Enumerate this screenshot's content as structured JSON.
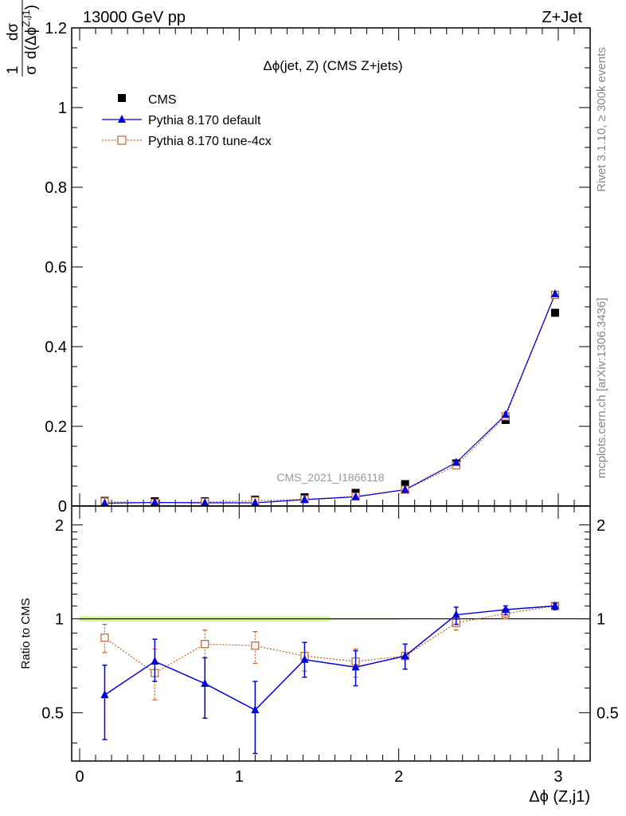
{
  "header": {
    "left": "13000 GeV pp",
    "right": "Z+Jet"
  },
  "side_labels": {
    "rivet": "Rivet 3.1.10, ≥ 300k events",
    "mcplots": "mcplots.cern.ch [arXiv:1306.3436]"
  },
  "colors": {
    "cms": "#000000",
    "default": "#0000dd",
    "tune4cx": "#c0602a",
    "band": "#ccff66"
  },
  "chart_data": [
    {
      "type": "scatter",
      "title": "Δϕ(jet, Z) (CMS Z+jets)",
      "ylabel": "1/σ dσ/d(Δϕ^{Z,j1})",
      "ylim": [
        0,
        1.2
      ],
      "xlim": [
        -0.05,
        3.2
      ],
      "y_ticks": [
        "0",
        "0.2",
        "0.4",
        "0.6",
        "0.8",
        "1",
        "1.2"
      ],
      "watermark": "CMS_2021_I1866118",
      "legend_position": "top-left",
      "x": [
        0.157,
        0.471,
        0.785,
        1.1,
        1.41,
        1.73,
        2.04,
        2.36,
        2.67,
        2.98
      ],
      "series": [
        {
          "name": "CMS",
          "marker": "filled-square",
          "values": [
            0.013,
            0.012,
            0.012,
            0.016,
            0.022,
            0.033,
            0.055,
            0.107,
            0.216,
            0.485
          ]
        },
        {
          "name": "Pythia 8.170 default",
          "marker": "triangle",
          "values": [
            0.007,
            0.009,
            0.008,
            0.008,
            0.016,
            0.023,
            0.041,
            0.109,
            0.229,
            0.532
          ]
        },
        {
          "name": "Pythia 8.170 tune-4cx",
          "marker": "open-square",
          "values": [
            0.011,
            0.008,
            0.01,
            0.013,
            0.017,
            0.024,
            0.041,
            0.102,
            0.225,
            0.53
          ]
        }
      ]
    },
    {
      "type": "line",
      "ylabel": "Ratio to CMS",
      "xlabel": "Δϕ (Z,j1)",
      "ylim": [
        0.35,
        2.3
      ],
      "xlim": [
        -0.05,
        3.2
      ],
      "y_ticks": [
        "0.5",
        "1",
        "2"
      ],
      "x_ticks": [
        "0",
        "1",
        "2",
        "3"
      ],
      "x": [
        0.157,
        0.471,
        0.785,
        1.1,
        1.41,
        1.73,
        2.04,
        2.36,
        2.67,
        2.98
      ],
      "series": [
        {
          "name": "Pythia 8.170 default",
          "values": [
            0.57,
            0.73,
            0.62,
            0.51,
            0.74,
            0.7,
            0.76,
            1.03,
            1.07,
            1.1
          ],
          "err_lo": [
            0.41,
            0.63,
            0.48,
            0.37,
            0.65,
            0.61,
            0.69,
            0.96,
            1.03,
            1.07
          ],
          "err_hi": [
            0.71,
            0.86,
            0.75,
            0.63,
            0.84,
            0.79,
            0.83,
            1.09,
            1.1,
            1.12
          ]
        },
        {
          "name": "Pythia 8.170 tune-4cx",
          "values": [
            0.87,
            0.67,
            0.83,
            0.82,
            0.76,
            0.73,
            0.76,
            0.97,
            1.04,
            1.1
          ],
          "err_lo": [
            0.78,
            0.55,
            0.75,
            0.72,
            0.68,
            0.65,
            0.69,
            0.92,
            1.0,
            1.07
          ],
          "err_hi": [
            0.96,
            0.8,
            0.92,
            0.91,
            0.84,
            0.8,
            0.83,
            1.02,
            1.08,
            1.12
          ]
        }
      ],
      "cms_band_half_width": 0.02
    }
  ]
}
